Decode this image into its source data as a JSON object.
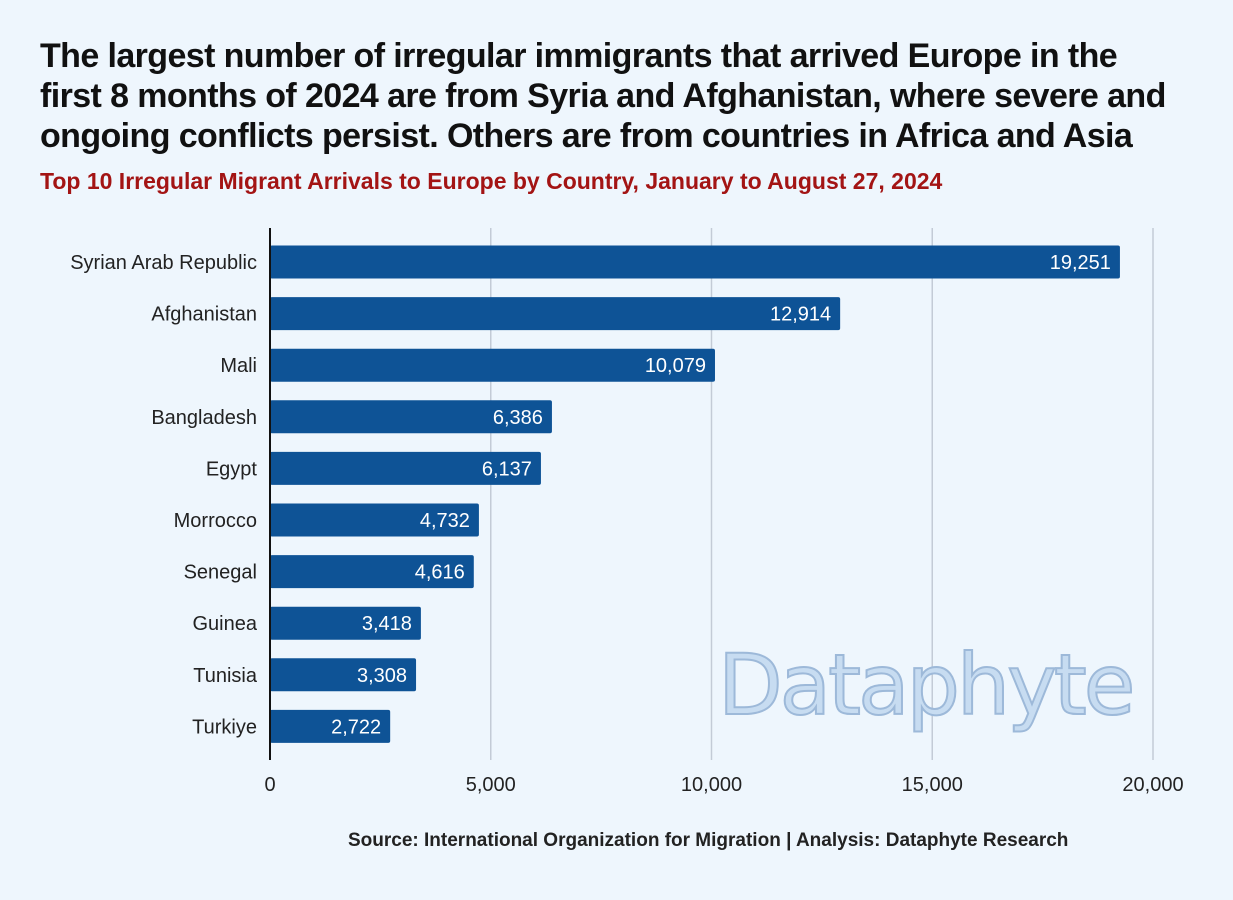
{
  "title_lines": [
    "The largest number of irregular immigrants that arrived Europe in the",
    "first 8 months of 2024 are from Syria and Afghanistan, where severe and",
    "ongoing conflicts persist. Others are from countries in Africa and Asia"
  ],
  "subtitle": "Top 10 Irregular Migrant Arrivals to Europe by Country, January to August 27, 2024",
  "source": "Source: International Organization for Migration | Analysis: Dataphyte Research",
  "watermark": "Dataphyte",
  "colors": {
    "bar": "#0e5396",
    "title": "#111111",
    "subtitle": "#a31414",
    "background": "#eef6fd",
    "grid": "#c3cbd6"
  },
  "chart_data": {
    "type": "bar",
    "orientation": "horizontal",
    "categories": [
      "Syrian Arab Republic",
      "Afghanistan",
      "Mali",
      "Bangladesh",
      "Egypt",
      "Morrocco",
      "Senegal",
      "Guinea",
      "Tunisia",
      "Turkiye"
    ],
    "values": [
      19251,
      12914,
      10079,
      6386,
      6137,
      4732,
      4616,
      3418,
      3308,
      2722
    ],
    "value_labels": [
      "19,251",
      "12,914",
      "10,079",
      "6,386",
      "6,137",
      "4,732",
      "4,616",
      "3,418",
      "3,308",
      "2,722"
    ],
    "xlim": [
      0,
      20000
    ],
    "x_ticks": [
      0,
      5000,
      10000,
      15000,
      20000
    ],
    "x_tick_labels": [
      "0",
      "5,000",
      "10,000",
      "15,000",
      "20,000"
    ],
    "grid": "vertical"
  }
}
